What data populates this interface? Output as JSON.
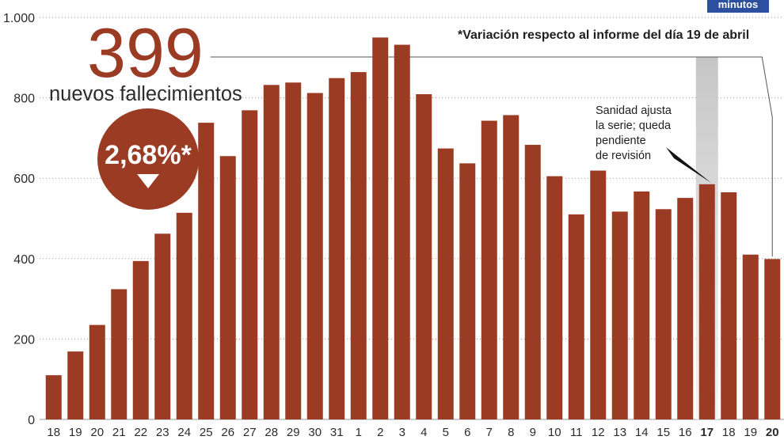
{
  "brand": {
    "label": "minutos"
  },
  "headline": {
    "value": "399",
    "caption": "nuevos fallecimientos"
  },
  "variation": {
    "value": "2,68%*",
    "icon": "down-triangle-icon"
  },
  "footnote": "*Variación respecto al informe del día 19 de abril",
  "annotation": {
    "lines": [
      "Sanidad ajusta",
      "la serie; queda",
      "pendiente",
      "de revisión"
    ],
    "pointer_icon": "pointer-wedge-icon"
  },
  "colors": {
    "bar": "#9b3b24",
    "accent": "#9b3b24",
    "brand": "#2d4f9f",
    "grid": "#9a9a9a",
    "text": "#2b2b2b"
  },
  "chart_data": {
    "type": "bar",
    "categories": [
      "18",
      "19",
      "20",
      "21",
      "22",
      "23",
      "24",
      "25",
      "26",
      "27",
      "28",
      "29",
      "30",
      "31",
      "1",
      "2",
      "3",
      "4",
      "5",
      "6",
      "7",
      "8",
      "9",
      "10",
      "11",
      "12",
      "13",
      "14",
      "15",
      "16",
      "17",
      "18",
      "19",
      "20"
    ],
    "values": [
      110,
      169,
      235,
      324,
      394,
      462,
      514,
      738,
      655,
      769,
      832,
      838,
      812,
      849,
      864,
      950,
      932,
      809,
      674,
      637,
      743,
      757,
      683,
      605,
      510,
      619,
      517,
      567,
      523,
      551,
      585,
      565,
      410,
      399
    ],
    "yticks": [
      0,
      200,
      400,
      600,
      800,
      1000
    ],
    "ytick_labels": [
      "0",
      "200",
      "400",
      "600",
      "800",
      "1.000"
    ],
    "ylim": [
      0,
      1000
    ],
    "grid": true,
    "emphasis": {
      "bold_label_indices": [
        30,
        33
      ],
      "shaded_index": 30,
      "headline_index": 33
    }
  }
}
